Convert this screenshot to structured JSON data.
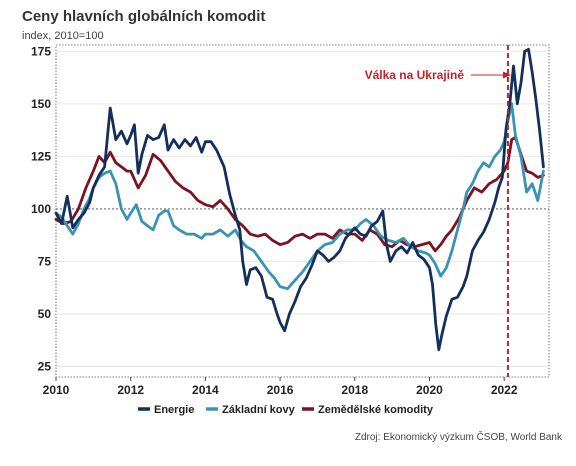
{
  "chart_data": {
    "type": "line",
    "title": "Ceny hlavních globálních komodit",
    "subtitle": "index, 2010=100",
    "source": "Zdroj: Ekonomický výzkum ČSOB, World Bank",
    "annotation": "Válka na Ukrajině",
    "annotation_x": 2022.1,
    "reference_line_y": 100,
    "xlim": [
      2010,
      2023.2
    ],
    "ylim": [
      20,
      178
    ],
    "x_ticks": [
      2010,
      2012,
      2014,
      2016,
      2018,
      2020,
      2022
    ],
    "y_ticks": [
      25,
      50,
      75,
      100,
      125,
      150,
      175
    ],
    "grid": "horizontal",
    "legend": "bottom",
    "colors": {
      "Energie": "#14305a",
      "Základní kovy": "#3a93b4",
      "Zemědělské komodity": "#7a1420"
    },
    "series": [
      {
        "name": "Energie",
        "x": [
          2010.0,
          2010.15,
          2010.3,
          2010.45,
          2010.6,
          2010.75,
          2010.9,
          2011.0,
          2011.15,
          2011.3,
          2011.45,
          2011.6,
          2011.75,
          2011.9,
          2012.0,
          2012.1,
          2012.2,
          2012.3,
          2012.45,
          2012.6,
          2012.75,
          2012.9,
          2013.0,
          2013.15,
          2013.3,
          2013.45,
          2013.6,
          2013.75,
          2013.9,
          2014.0,
          2014.15,
          2014.3,
          2014.5,
          2014.65,
          2014.8,
          2014.92,
          2015.0,
          2015.1,
          2015.2,
          2015.35,
          2015.5,
          2015.65,
          2015.8,
          2015.92,
          2016.0,
          2016.12,
          2016.25,
          2016.4,
          2016.55,
          2016.7,
          2016.85,
          2017.0,
          2017.15,
          2017.3,
          2017.45,
          2017.6,
          2017.75,
          2017.9,
          2018.0,
          2018.15,
          2018.3,
          2018.45,
          2018.6,
          2018.75,
          2018.85,
          2018.95,
          2019.1,
          2019.25,
          2019.4,
          2019.55,
          2019.7,
          2019.85,
          2020.0,
          2020.08,
          2020.17,
          2020.25,
          2020.33,
          2020.45,
          2020.6,
          2020.75,
          2020.9,
          2021.0,
          2021.15,
          2021.3,
          2021.45,
          2021.6,
          2021.75,
          2021.85,
          2021.95,
          2022.05,
          2022.15,
          2022.25,
          2022.35,
          2022.45,
          2022.55,
          2022.65,
          2022.75,
          2022.85,
          2022.95,
          2023.05
        ],
        "values": [
          98,
          93,
          106,
          91,
          95,
          98,
          103,
          110,
          116,
          120,
          148,
          133,
          137,
          131,
          135,
          140,
          117,
          126,
          135,
          133,
          134,
          140,
          128,
          133,
          129,
          133,
          130,
          134,
          127,
          132,
          132,
          128,
          120,
          107,
          97,
          90,
          75,
          64,
          71,
          72,
          68,
          58,
          57,
          50,
          46,
          42,
          50,
          56,
          63,
          67,
          73,
          80,
          78,
          75,
          77,
          80,
          86,
          89,
          91,
          88,
          87,
          92,
          94,
          99,
          83,
          75,
          80,
          82,
          79,
          84,
          78,
          76,
          72,
          64,
          45,
          33,
          40,
          49,
          57,
          58,
          63,
          68,
          80,
          85,
          89,
          95,
          103,
          110,
          115,
          138,
          150,
          168,
          150,
          160,
          175,
          176,
          165,
          152,
          137,
          120
        ]
      },
      {
        "name": "Základní kovy",
        "x": [
          2010.0,
          2010.15,
          2010.3,
          2010.45,
          2010.6,
          2010.75,
          2010.9,
          2011.0,
          2011.15,
          2011.3,
          2011.45,
          2011.6,
          2011.75,
          2011.9,
          2012.0,
          2012.15,
          2012.3,
          2012.45,
          2012.6,
          2012.75,
          2012.9,
          2013.0,
          2013.15,
          2013.3,
          2013.5,
          2013.7,
          2013.9,
          2014.0,
          2014.2,
          2014.4,
          2014.6,
          2014.8,
          2014.95,
          2015.1,
          2015.3,
          2015.5,
          2015.7,
          2015.85,
          2016.0,
          2016.2,
          2016.4,
          2016.6,
          2016.8,
          2017.0,
          2017.2,
          2017.4,
          2017.6,
          2017.8,
          2018.0,
          2018.15,
          2018.3,
          2018.5,
          2018.7,
          2018.9,
          2019.1,
          2019.3,
          2019.5,
          2019.7,
          2019.9,
          2020.0,
          2020.15,
          2020.3,
          2020.45,
          2020.6,
          2020.75,
          2020.9,
          2021.0,
          2021.15,
          2021.3,
          2021.45,
          2021.6,
          2021.75,
          2021.9,
          2022.0,
          2022.1,
          2022.2,
          2022.3,
          2022.45,
          2022.6,
          2022.75,
          2022.9,
          2023.05
        ],
        "values": [
          98,
          96,
          92,
          88,
          93,
          100,
          105,
          110,
          115,
          117,
          118,
          112,
          100,
          95,
          98,
          102,
          94,
          92,
          90,
          97,
          99,
          99,
          92,
          90,
          88,
          88,
          86,
          88,
          88,
          90,
          87,
          90,
          85,
          82,
          80,
          75,
          70,
          67,
          63,
          62,
          66,
          70,
          75,
          80,
          83,
          84,
          88,
          90,
          90,
          93,
          95,
          92,
          87,
          85,
          84,
          86,
          82,
          80,
          79,
          78,
          74,
          68,
          72,
          80,
          90,
          100,
          108,
          112,
          118,
          122,
          120,
          125,
          128,
          132,
          142,
          150,
          135,
          125,
          108,
          112,
          104,
          118
        ]
      },
      {
        "name": "Zemědělské komodity",
        "x": [
          2010.0,
          2010.2,
          2010.4,
          2010.6,
          2010.8,
          2011.0,
          2011.15,
          2011.3,
          2011.45,
          2011.6,
          2011.75,
          2011.9,
          2012.0,
          2012.2,
          2012.4,
          2012.6,
          2012.8,
          2013.0,
          2013.2,
          2013.4,
          2013.6,
          2013.8,
          2014.0,
          2014.2,
          2014.4,
          2014.6,
          2014.8,
          2015.0,
          2015.2,
          2015.4,
          2015.6,
          2015.8,
          2016.0,
          2016.2,
          2016.4,
          2016.6,
          2016.8,
          2017.0,
          2017.2,
          2017.4,
          2017.6,
          2017.8,
          2018.0,
          2018.2,
          2018.4,
          2018.6,
          2018.8,
          2019.0,
          2019.2,
          2019.4,
          2019.6,
          2019.8,
          2020.0,
          2020.15,
          2020.3,
          2020.45,
          2020.6,
          2020.8,
          2021.0,
          2021.2,
          2021.4,
          2021.6,
          2021.8,
          2022.0,
          2022.1,
          2022.2,
          2022.3,
          2022.45,
          2022.6,
          2022.75,
          2022.9,
          2023.05
        ],
        "values": [
          95,
          93,
          94,
          100,
          110,
          118,
          125,
          122,
          127,
          122,
          120,
          118,
          118,
          110,
          116,
          126,
          123,
          118,
          113,
          110,
          108,
          104,
          102,
          101,
          104,
          100,
          95,
          92,
          88,
          87,
          88,
          85,
          83,
          84,
          87,
          88,
          86,
          88,
          88,
          86,
          90,
          88,
          88,
          85,
          90,
          88,
          83,
          82,
          85,
          83,
          82,
          83,
          84,
          80,
          83,
          87,
          90,
          96,
          104,
          110,
          108,
          112,
          114,
          118,
          122,
          133,
          134,
          126,
          118,
          117,
          115,
          116
        ]
      }
    ]
  }
}
